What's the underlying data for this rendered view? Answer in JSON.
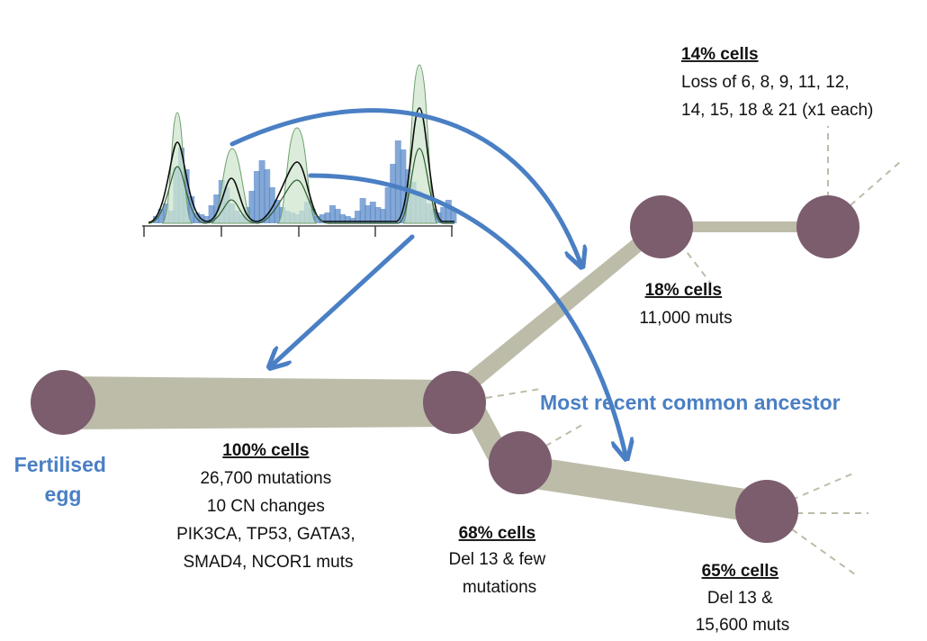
{
  "colors": {
    "node": "#7c5d6e",
    "branch": "#bcbca9",
    "arrow": "#4a7fc4",
    "blue_text": "#4a7fc4",
    "histogram_bar": "#5b8bc9",
    "peak_fill": "#cfe6cf"
  },
  "labels": {
    "fertilised_egg": [
      "Fertilised",
      "egg"
    ],
    "mrca": "Most recent common ancestor"
  },
  "nodes": {
    "trunk": {
      "header": "100% cells",
      "lines": [
        "26,700 mutations",
        "10 CN changes",
        "PIK3CA, TP53, GATA3,",
        "SMAD4, NCOR1 muts"
      ]
    },
    "n18": {
      "header": "18% cells",
      "lines": [
        "11,000 muts"
      ]
    },
    "n14": {
      "header": "14% cells",
      "lines": [
        "Loss of 6, 8, 9, 11, 12,",
        "14, 15, 18 & 21 (x1 each)"
      ]
    },
    "n68": {
      "header": "68% cells",
      "lines": [
        "Del 13 & few",
        "mutations"
      ]
    },
    "n65": {
      "header": "65% cells",
      "lines": [
        "Del 13 &",
        "15,600 muts"
      ]
    }
  }
}
